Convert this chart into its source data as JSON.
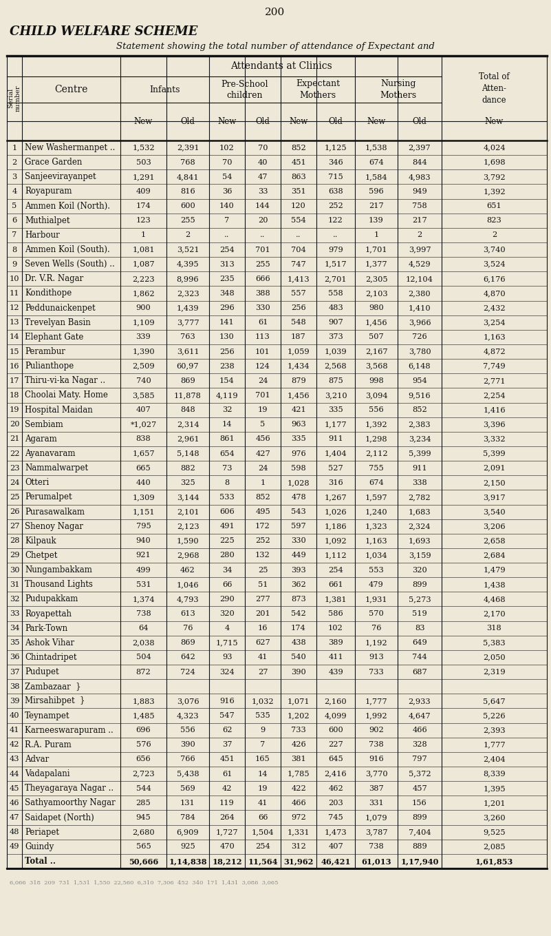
{
  "page_number": "200",
  "title1": "CHILD WELFARE SCHEME",
  "title2": "Statement showing the total number of attendance of Expectant and",
  "bg_color": "#ede8d8",
  "text_color": "#111111",
  "line_color": "#111111",
  "rows": [
    [
      "1",
      "New Washermanpet ..",
      "1,532",
      "2,391",
      "102",
      "70",
      "852",
      "1,125",
      "1,538",
      "2,397",
      "4,024"
    ],
    [
      "2",
      "Grace Garden",
      "503",
      "768",
      "70",
      "40",
      "451",
      "346",
      "674",
      "844",
      "1,698"
    ],
    [
      "3",
      "Sanjeevirayanpet",
      "1,291",
      "4,841",
      "54",
      "47",
      "863",
      "715",
      "1,584",
      "4,983",
      "3,792"
    ],
    [
      "4",
      "Royapuram",
      "409",
      "816",
      "36",
      "33",
      "351",
      "638",
      "596",
      "949",
      "1,392"
    ],
    [
      "5",
      "Ammen Koil (North).",
      "174",
      "600",
      "140",
      "144",
      "120",
      "252",
      "217",
      "758",
      "651"
    ],
    [
      "6",
      "Muthialpet",
      "123",
      "255",
      "7",
      "20",
      "554",
      "122",
      "139",
      "217",
      "823"
    ],
    [
      "7",
      "Harbour",
      "1",
      "2",
      "..",
      "..",
      "..",
      "..",
      "1",
      "2",
      "2"
    ],
    [
      "8",
      "Ammen Koil (South).",
      "1,081",
      "3,521",
      "254",
      "701",
      "704",
      "979",
      "1,701",
      "3,997",
      "3,740"
    ],
    [
      "9",
      "Seven Wells (South) ..",
      "1,087",
      "4,395",
      "313",
      "255",
      "747",
      "1,517",
      "1,377",
      "4,529",
      "3,524"
    ],
    [
      "10",
      "Dr. V.R. Nagar",
      "2,223",
      "8,996",
      "235",
      "666",
      "1,413",
      "2,701",
      "2,305",
      "12,104",
      "6,176"
    ],
    [
      "11",
      "Kondithope",
      "1,862",
      "2,323",
      "348",
      "388",
      "557",
      "558",
      "2,103",
      "2,380",
      "4,870"
    ],
    [
      "12",
      "Peddunaickenpet",
      "900",
      "1,439",
      "296",
      "330",
      "256",
      "483",
      "980",
      "1,410",
      "2,432"
    ],
    [
      "13",
      "Trevelyan Basin",
      "1,109",
      "3,777",
      "141",
      "61",
      "548",
      "907",
      "1,456",
      "3,966",
      "3,254"
    ],
    [
      "14",
      "Elephant Gate",
      "339",
      "763",
      "130",
      "113",
      "187",
      "373",
      "507",
      "726",
      "1,163"
    ],
    [
      "15",
      "Perambur",
      "1,390",
      "3,611",
      "256",
      "101",
      "1,059",
      "1,039",
      "2,167",
      "3,780",
      "4,872"
    ],
    [
      "16",
      "Pulianthope",
      "2,509",
      "60,97",
      "238",
      "124",
      "1,434",
      "2,568",
      "3,568",
      "6,148",
      "7,749"
    ],
    [
      "17",
      "Thiru-vi-ka Nagar ..",
      "740",
      "869",
      "154",
      "24",
      "879",
      "875",
      "998",
      "954",
      "2,771"
    ],
    [
      "18",
      "Choolai Maty. Home",
      "3,585",
      "11,878",
      "4,119",
      "701",
      "1,456",
      "3,210",
      "3,094",
      "9,516",
      "2,254"
    ],
    [
      "19",
      "Hospital Maidan",
      "407",
      "848",
      "32",
      "19",
      "421",
      "335",
      "556",
      "852",
      "1,416"
    ],
    [
      "20",
      "Sembiam",
      "*1,027",
      "2,314",
      "14",
      "5",
      "963",
      "1,177",
      "1,392",
      "2,383",
      "3,396"
    ],
    [
      "21",
      "Agaram",
      "838",
      "2,961",
      "861",
      "456",
      "335",
      "911",
      "1,298",
      "3,234",
      "3,332"
    ],
    [
      "22",
      "Ayanavaram",
      "1,657",
      "5,148",
      "654",
      "427",
      "976",
      "1,404",
      "2,112",
      "5,399",
      "5,399"
    ],
    [
      "23",
      "Nammalwarpet",
      "665",
      "882",
      "73",
      "24",
      "598",
      "527",
      "755",
      "911",
      "2,091"
    ],
    [
      "24",
      "Otteri",
      "440",
      "325",
      "8",
      "1",
      "1,028",
      "316",
      "674",
      "338",
      "2,150"
    ],
    [
      "25",
      "Perumalpet",
      "1,309",
      "3,144",
      "533",
      "852",
      "478",
      "1,267",
      "1,597",
      "2,782",
      "3,917"
    ],
    [
      "26",
      "Purasawalkam",
      "1,151",
      "2,101",
      "606",
      "495",
      "543",
      "1,026",
      "1,240",
      "1,683",
      "3,540"
    ],
    [
      "27",
      "Shenoy Nagar",
      "795",
      "2,123",
      "491",
      "172",
      "597",
      "1,186",
      "1,323",
      "2,324",
      "3,206"
    ],
    [
      "28",
      "Kilpauk",
      "940",
      "1,590",
      "225",
      "252",
      "330",
      "1,092",
      "1,163",
      "1,693",
      "2,658"
    ],
    [
      "29",
      "Chetpet",
      "921",
      "2,968",
      "280",
      "132",
      "449",
      "1,112",
      "1,034",
      "3,159",
      "2,684"
    ],
    [
      "30",
      "Nungambakkam",
      "499",
      "462",
      "34",
      "25",
      "393",
      "254",
      "553",
      "320",
      "1,479"
    ],
    [
      "31",
      "Thousand Lights",
      "531",
      "1,046",
      "66",
      "51",
      "362",
      "661",
      "479",
      "899",
      "1,438"
    ],
    [
      "32",
      "Pudupakkam",
      "1,374",
      "4,793",
      "290",
      "277",
      "873",
      "1,381",
      "1,931",
      "5,273",
      "4,468"
    ],
    [
      "33",
      "Royapettah",
      "738",
      "613",
      "320",
      "201",
      "542",
      "586",
      "570",
      "519",
      "2,170"
    ],
    [
      "34",
      "Park-Town",
      "64",
      "76",
      "4",
      "16",
      "174",
      "102",
      "76",
      "83",
      "318"
    ],
    [
      "35",
      "Ashok Vihar",
      "2,038",
      "869",
      "1,715",
      "627",
      "438",
      "389",
      "1,192",
      "649",
      "5,383"
    ],
    [
      "36",
      "Chintadripet",
      "504",
      "642",
      "93",
      "41",
      "540",
      "411",
      "913",
      "744",
      "2,050"
    ],
    [
      "37",
      "Pudupet",
      "872",
      "724",
      "324",
      "27",
      "390",
      "439",
      "733",
      "687",
      "2,319"
    ],
    [
      "38",
      "Zambazaar  }",
      "",
      "",
      "",
      "",
      "",
      "",
      "",
      "",
      ""
    ],
    [
      "39",
      "Mirsahibpet  }",
      "1,883",
      "3,076",
      "916",
      "1,032",
      "1,071",
      "2,160",
      "1,777",
      "2,933",
      "5,647"
    ],
    [
      "40",
      "Teynampet",
      "1,485",
      "4,323",
      "547",
      "535",
      "1,202",
      "4,099",
      "1,992",
      "4,647",
      "5,226"
    ],
    [
      "41",
      "Karneeswarapuram ..",
      "696",
      "556",
      "62",
      "9",
      "733",
      "600",
      "902",
      "466",
      "2,393"
    ],
    [
      "42",
      "R.A. Puram",
      "576",
      "390",
      "37",
      "7",
      "426",
      "227",
      "738",
      "328",
      "1,777"
    ],
    [
      "43",
      "Advar",
      "656",
      "766",
      "451",
      "165",
      "381",
      "645",
      "916",
      "797",
      "2,404"
    ],
    [
      "44",
      "Vadapalani",
      "2,723",
      "5,438",
      "61",
      "14",
      "1,785",
      "2,416",
      "3,770",
      "5,372",
      "8,339"
    ],
    [
      "45",
      "Theyagaraya Nagar ..",
      "544",
      "569",
      "42",
      "19",
      "422",
      "462",
      "387",
      "457",
      "1,395"
    ],
    [
      "46",
      "Sathyamoorthy Nagar",
      "285",
      "131",
      "119",
      "41",
      "466",
      "203",
      "331",
      "156",
      "1,201"
    ],
    [
      "47",
      "Saidapet (North)",
      "945",
      "784",
      "264",
      "66",
      "972",
      "745",
      "1,079",
      "899",
      "3,260"
    ],
    [
      "48",
      "Periapet",
      "2,680",
      "6,909",
      "1,727",
      "1,504",
      "1,331",
      "1,473",
      "3,787",
      "7,404",
      "9,525"
    ],
    [
      "49",
      "Guindy",
      "565",
      "925",
      "470",
      "254",
      "312",
      "407",
      "738",
      "889",
      "2,085"
    ],
    [
      "",
      "Total ..",
      "50,666",
      "1,14,838",
      "18,212",
      "11,564",
      "31,962",
      "46,421",
      "61,013",
      "1,17,940",
      "1,61,853"
    ]
  ],
  "footer": "6,066  318  209  731  1,531  1,550  22,560  6,310  7,306  452  340  171  1,431  3,086  3,065"
}
